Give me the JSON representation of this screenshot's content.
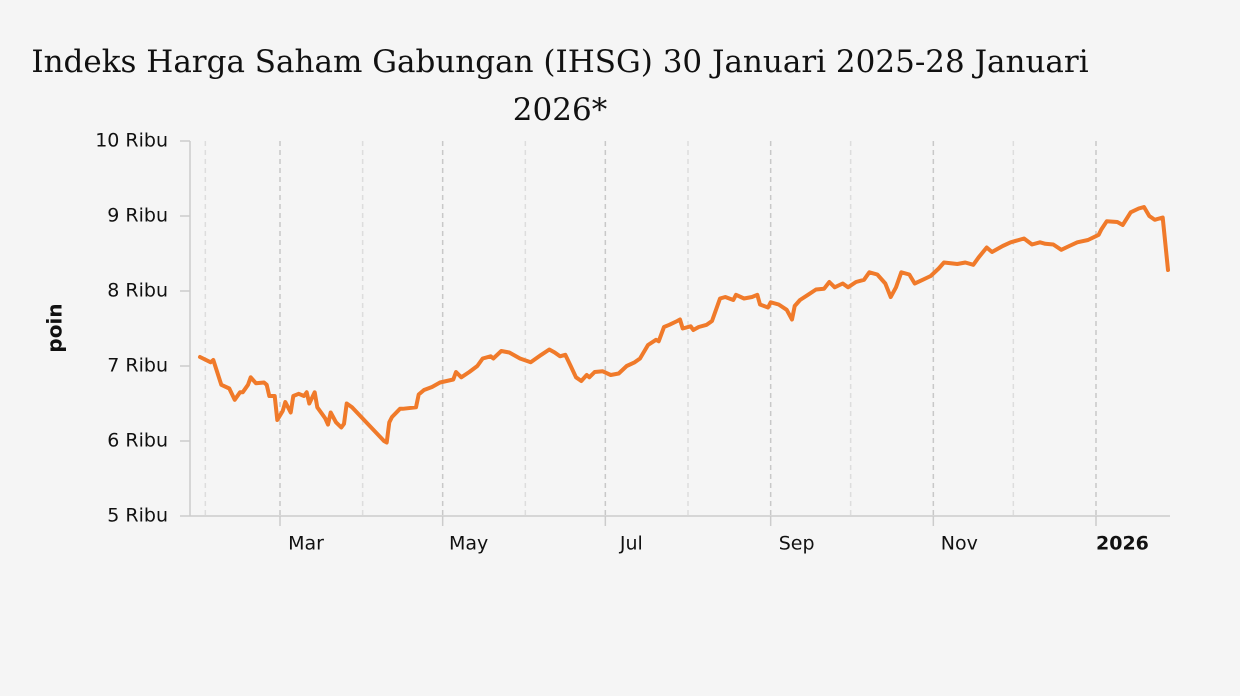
{
  "chart_data": {
    "type": "line",
    "title": "Indeks Harga Saham Gabungan (IHSG) 30 Januari 2025-28 Januari 2026*",
    "ylabel": "poin",
    "color": "#f07a2a",
    "x": [
      "2025-01-30",
      "2025-02-03",
      "2025-02-04",
      "2025-02-07",
      "2025-02-10",
      "2025-02-12",
      "2025-02-14",
      "2025-02-15",
      "2025-02-17",
      "2025-02-18",
      "2025-02-20",
      "2025-02-23",
      "2025-02-24",
      "2025-02-25",
      "2025-02-27",
      "2025-02-28",
      "2025-03-02",
      "2025-03-03",
      "2025-03-05",
      "2025-03-06",
      "2025-03-08",
      "2025-03-10",
      "2025-03-11",
      "2025-03-12",
      "2025-03-14",
      "2025-03-15",
      "2025-03-17",
      "2025-03-18",
      "2025-03-19",
      "2025-03-20",
      "2025-03-22",
      "2025-03-24",
      "2025-03-25",
      "2025-03-26",
      "2025-03-28",
      "2025-04-09",
      "2025-04-10",
      "2025-04-11",
      "2025-04-12",
      "2025-04-15",
      "2025-04-16",
      "2025-04-21",
      "2025-04-22",
      "2025-04-24",
      "2025-04-27",
      "2025-04-30",
      "2025-05-05",
      "2025-05-06",
      "2025-05-08",
      "2025-05-11",
      "2025-05-14",
      "2025-05-16",
      "2025-05-19",
      "2025-05-20",
      "2025-05-23",
      "2025-05-26",
      "2025-05-30",
      "2025-06-03",
      "2025-06-07",
      "2025-06-10",
      "2025-06-12",
      "2025-06-14",
      "2025-06-16",
      "2025-06-18",
      "2025-06-20",
      "2025-06-22",
      "2025-06-24",
      "2025-06-25",
      "2025-06-27",
      "2025-06-30",
      "2025-07-03",
      "2025-07-06",
      "2025-07-09",
      "2025-07-12",
      "2025-07-14",
      "2025-07-17",
      "2025-07-20",
      "2025-07-21",
      "2025-07-23",
      "2025-07-25",
      "2025-07-28",
      "2025-07-29",
      "2025-07-30",
      "2025-08-02",
      "2025-08-03",
      "2025-08-05",
      "2025-08-08",
      "2025-08-10",
      "2025-08-13",
      "2025-08-15",
      "2025-08-18",
      "2025-08-19",
      "2025-08-22",
      "2025-08-25",
      "2025-08-27",
      "2025-08-28",
      "2025-08-31",
      "2025-09-01",
      "2025-09-04",
      "2025-09-07",
      "2025-09-09",
      "2025-09-10",
      "2025-09-12",
      "2025-09-15",
      "2025-09-18",
      "2025-09-21",
      "2025-09-23",
      "2025-09-25",
      "2025-09-28",
      "2025-09-30",
      "2025-10-03",
      "2025-10-06",
      "2025-10-08",
      "2025-10-11",
      "2025-10-14",
      "2025-10-16",
      "2025-10-18",
      "2025-10-20",
      "2025-10-23",
      "2025-10-25",
      "2025-10-28",
      "2025-10-31",
      "2025-11-03",
      "2025-11-05",
      "2025-11-10",
      "2025-11-13",
      "2025-11-16",
      "2025-11-18",
      "2025-11-21",
      "2025-11-23",
      "2025-11-27",
      "2025-11-30",
      "2025-12-05",
      "2025-12-08",
      "2025-12-11",
      "2025-12-13",
      "2025-12-16",
      "2025-12-19",
      "2025-12-22",
      "2025-12-25",
      "2025-12-29",
      "2026-01-02",
      "2026-01-03",
      "2026-01-05",
      "2026-01-09",
      "2026-01-11",
      "2026-01-14",
      "2026-01-17",
      "2026-01-19",
      "2026-01-21",
      "2026-01-23",
      "2026-01-26",
      "2026-01-28"
    ],
    "values": [
      7120,
      7050,
      7080,
      6750,
      6700,
      6550,
      6650,
      6650,
      6750,
      6850,
      6770,
      6780,
      6750,
      6600,
      6600,
      6280,
      6400,
      6520,
      6380,
      6600,
      6630,
      6600,
      6650,
      6500,
      6650,
      6450,
      6350,
      6300,
      6220,
      6380,
      6250,
      6180,
      6230,
      6500,
      6450,
      6000,
      5980,
      6250,
      6320,
      6430,
      6430,
      6450,
      6620,
      6680,
      6720,
      6780,
      6820,
      6920,
      6850,
      6920,
      7000,
      7100,
      7130,
      7100,
      7200,
      7180,
      7100,
      7050,
      7150,
      7220,
      7180,
      7130,
      7150,
      7000,
      6850,
      6800,
      6880,
      6850,
      6920,
      6930,
      6880,
      6900,
      7000,
      7050,
      7100,
      7280,
      7350,
      7330,
      7520,
      7550,
      7600,
      7620,
      7500,
      7530,
      7480,
      7520,
      7550,
      7600,
      7900,
      7920,
      7880,
      7950,
      7900,
      7920,
      7950,
      7820,
      7780,
      7850,
      7820,
      7750,
      7620,
      7800,
      7880,
      7950,
      8020,
      8030,
      8120,
      8050,
      8100,
      8050,
      8120,
      8150,
      8250,
      8220,
      8100,
      7920,
      8050,
      8250,
      8220,
      8100,
      8150,
      8200,
      8300,
      8380,
      8360,
      8380,
      8350,
      8450,
      8580,
      8520,
      8600,
      8650,
      8700,
      8620,
      8650,
      8630,
      8620,
      8550,
      8600,
      8650,
      8680,
      8750,
      8820,
      8930,
      8920,
      8880,
      9050,
      9100,
      9120,
      9000,
      8950,
      8980,
      8280
    ],
    "xlim": [
      "2025-01-30",
      "2026-01-28"
    ],
    "xticks": [
      {
        "value": "2025-03-01",
        "label": "Mar"
      },
      {
        "value": "2025-05-01",
        "label": "May"
      },
      {
        "value": "2025-07-01",
        "label": "Jul"
      },
      {
        "value": "2025-09-01",
        "label": "Sep"
      },
      {
        "value": "2025-11-01",
        "label": "Nov"
      },
      {
        "value": "2026-01-01",
        "label": "2026",
        "bold": true
      }
    ],
    "xminorticks": [
      "2025-02-01",
      "2025-04-01",
      "2025-06-01",
      "2025-08-01",
      "2025-10-01",
      "2025-12-01"
    ],
    "ylim": [
      5000,
      10000
    ],
    "yticks": [
      {
        "value": 5000,
        "label": "5 Ribu"
      },
      {
        "value": 6000,
        "label": "6 Ribu"
      },
      {
        "value": 7000,
        "label": "7 Ribu"
      },
      {
        "value": 8000,
        "label": "8 Ribu"
      },
      {
        "value": 9000,
        "label": "9 Ribu"
      },
      {
        "value": 10000,
        "label": "10 Ribu"
      }
    ]
  }
}
